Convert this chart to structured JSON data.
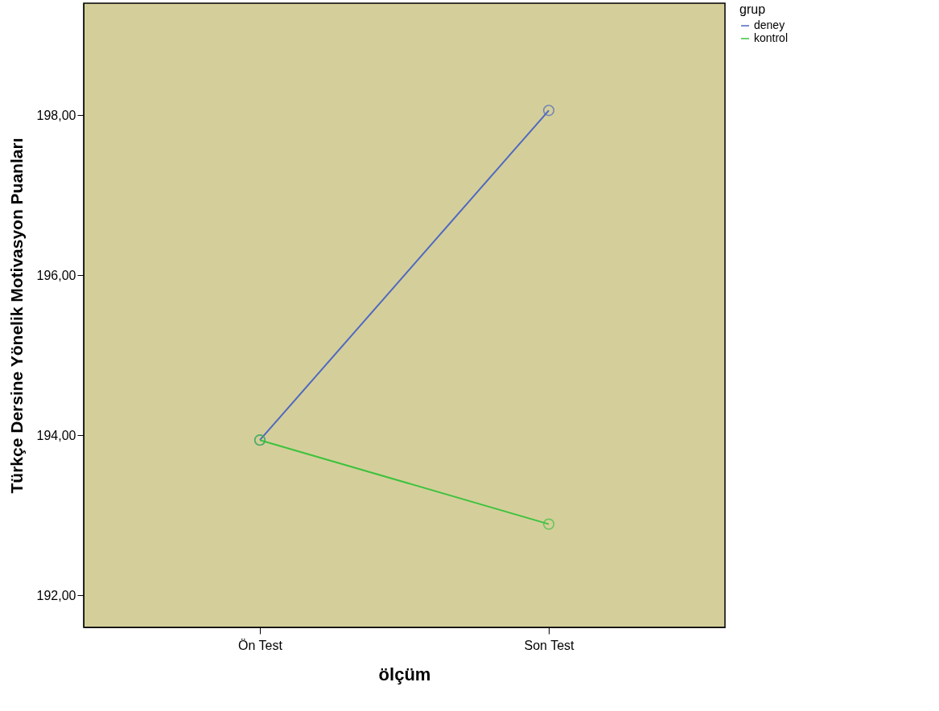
{
  "chart_data": {
    "type": "line",
    "xlabel": "ölçüm",
    "ylabel": "Türkçe  Dersine  Yönelik  Motivasyon  Puanları",
    "legend_title": "grup",
    "categories": [
      "Ön  Test",
      "Son  Test"
    ],
    "series": [
      {
        "name": "deney",
        "color": "#5068c0",
        "values": [
          193.94,
          198.06
        ]
      },
      {
        "name": "kontrol",
        "color": "#3ec23e",
        "values": [
          193.94,
          192.89
        ]
      }
    ],
    "ylim": [
      191.6,
      199.4
    ],
    "yticks": [
      {
        "value": 192,
        "label": "192,00"
      },
      {
        "value": 194,
        "label": "194,00"
      },
      {
        "value": 196,
        "label": "196,00"
      },
      {
        "value": 198,
        "label": "198,00"
      }
    ],
    "grid": false,
    "legend": "top right",
    "marker": "circle",
    "line_style": "solid"
  }
}
